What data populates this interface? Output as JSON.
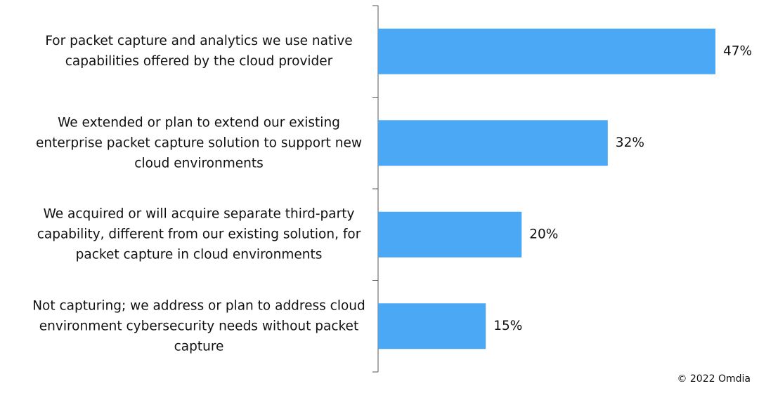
{
  "chart_data": {
    "type": "bar",
    "orientation": "horizontal",
    "categories": [
      "For packet capture and analytics we use native capabilities offered by the cloud provider",
      "We extended or plan to extend our existing enterprise packet capture solution to support new cloud environments",
      "We acquired or will acquire separate third-party capability, different from our existing solution, for packet capture in cloud environments",
      "Not capturing; we address or plan to address cloud environment cybersecurity needs without packet capture"
    ],
    "values": [
      47,
      32,
      20,
      15
    ],
    "value_labels": [
      "47%",
      "32%",
      "20%",
      "15%"
    ],
    "color": "#4aa8f5",
    "source": "© 2022 Omdia"
  }
}
